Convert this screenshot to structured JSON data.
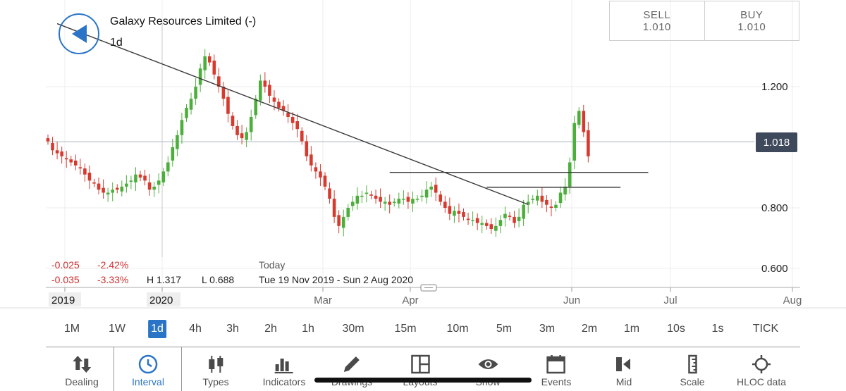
{
  "header": {
    "instrument_title": "Galaxy Resources Limited (-)",
    "interval": "1d"
  },
  "trade": {
    "sell_label": "SELL",
    "sell_price": "1.010",
    "buy_label": "BUY",
    "buy_price": "1.010"
  },
  "stats": {
    "change_row1": "-0.025",
    "pct_row1": "-2.42%",
    "change_row2": "-0.035",
    "pct_row2": "-3.33%",
    "high": "H 1.317",
    "low": "L 0.688",
    "today_label": "Today",
    "date_range": "Tue 19 Nov 2019 - Sun 2 Aug 2020"
  },
  "current_price": "1.018",
  "chart_data": {
    "type": "candlestick",
    "title": "Galaxy Resources Limited (-)",
    "interval": "1d",
    "xlabel": "",
    "ylabel": "",
    "ylim": [
      0.53,
      1.395
    ],
    "y_ticks": [
      "1.200",
      "0.800",
      "0.600"
    ],
    "x_ticks": [
      "2019",
      "2020",
      "Mar",
      "Apr",
      "Jun",
      "Jul",
      "Aug"
    ],
    "date_range": [
      "2019-11-19",
      "2020-08-02"
    ],
    "current_price": 1.018,
    "colors": {
      "up": "#4caf3c",
      "down": "#d63a2f",
      "price_line": "#b9c3cc",
      "grid": "#ececec",
      "trendline": "#3a3a3a"
    },
    "closes": [
      1.02,
      0.99,
      0.98,
      0.97,
      0.96,
      0.95,
      0.94,
      0.93,
      0.91,
      0.89,
      0.88,
      0.86,
      0.85,
      0.85,
      0.86,
      0.86,
      0.87,
      0.88,
      0.89,
      0.91,
      0.9,
      0.89,
      0.86,
      0.87,
      0.89,
      0.92,
      0.95,
      1.0,
      1.04,
      1.09,
      1.13,
      1.16,
      1.2,
      1.26,
      1.3,
      1.28,
      1.24,
      1.2,
      1.16,
      1.11,
      1.07,
      1.04,
      1.03,
      1.05,
      1.1,
      1.16,
      1.22,
      1.2,
      1.17,
      1.15,
      1.13,
      1.12,
      1.1,
      1.08,
      1.06,
      1.02,
      0.97,
      0.94,
      0.92,
      0.9,
      0.87,
      0.83,
      0.77,
      0.74,
      0.77,
      0.8,
      0.82,
      0.84,
      0.84,
      0.85,
      0.84,
      0.83,
      0.82,
      0.82,
      0.81,
      0.82,
      0.83,
      0.83,
      0.82,
      0.83,
      0.83,
      0.84,
      0.86,
      0.87,
      0.85,
      0.82,
      0.8,
      0.78,
      0.79,
      0.78,
      0.77,
      0.76,
      0.76,
      0.75,
      0.75,
      0.74,
      0.73,
      0.74,
      0.76,
      0.78,
      0.77,
      0.75,
      0.77,
      0.81,
      0.82,
      0.83,
      0.84,
      0.82,
      0.81,
      0.8,
      0.81,
      0.85,
      0.87,
      0.95,
      1.08,
      1.12,
      1.05,
      0.97
    ],
    "annotations": [
      {
        "type": "trendline",
        "from": {
          "index": 2,
          "price": 1.408
        },
        "to": {
          "index": 104,
          "price": 0.811
        }
      },
      {
        "type": "horizontal_segment",
        "price": 0.917,
        "from_index": 74,
        "to_index": 130
      },
      {
        "type": "horizontal_segment",
        "price": 0.868,
        "from_index": 95,
        "to_index": 124
      }
    ]
  },
  "intervals": [
    "1M",
    "1W",
    "1d",
    "4h",
    "3h",
    "2h",
    "1h",
    "30m",
    "15m",
    "10m",
    "5m",
    "3m",
    "2m",
    "1m",
    "10s",
    "1s",
    "TICK"
  ],
  "active_interval": "1d",
  "toolbar": [
    {
      "label": "Dealing",
      "icon": "dealing-arrows-icon"
    },
    {
      "label": "Interval",
      "icon": "clock-icon"
    },
    {
      "label": "Types",
      "icon": "candles-icon"
    },
    {
      "label": "Indicators",
      "icon": "bars-icon"
    },
    {
      "label": "Drawings",
      "icon": "pencil-icon"
    },
    {
      "label": "Layouts",
      "icon": "layout-grid-icon"
    },
    {
      "label": "Show",
      "icon": "eye-icon"
    },
    {
      "label": "Events",
      "icon": "calendar-icon"
    },
    {
      "label": "Mid",
      "icon": "mid-icon"
    },
    {
      "label": "Scale",
      "icon": "ruler-icon"
    },
    {
      "label": "HLOC data",
      "icon": "crosshair-icon"
    }
  ],
  "active_tool": "Interval"
}
